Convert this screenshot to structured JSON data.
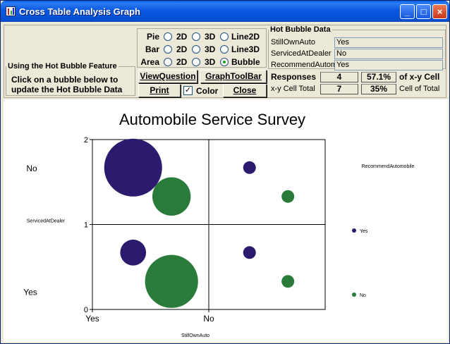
{
  "window": {
    "title": "Cross Table Analysis Graph",
    "minimize": "_",
    "maximize": "□",
    "close": "×"
  },
  "hint": {
    "legend": "Using the Hot Bubble Feature",
    "line1": "Click on a bubble below to",
    "line2": "update the Hot Bubble Data"
  },
  "graph_type": {
    "rows": [
      {
        "label": "Pie",
        "opt1": "2D",
        "opt2": "3D",
        "opt3": "Line2D",
        "selected": 0
      },
      {
        "label": "Bar",
        "opt1": "2D",
        "opt2": "3D",
        "opt3": "Line3D",
        "selected": 0
      },
      {
        "label": "Area",
        "opt1": "2D",
        "opt2": "3D",
        "opt3": "Bubble",
        "selected": 3
      }
    ]
  },
  "buttons": {
    "view_question": "ViewQuestion",
    "graph_toolbar": "GraphToolBar",
    "print": "Print",
    "color": "Color",
    "close": "Close",
    "color_checked": "✓"
  },
  "hot_bubble": {
    "legend": "Hot Bubble Data",
    "fields": [
      {
        "label": "StillOwnAuto",
        "value": "Yes"
      },
      {
        "label": "ServicedAtDealer",
        "value": "No"
      },
      {
        "label": "RecommendAutom",
        "value": "Yes"
      }
    ],
    "responses_label": "Responses",
    "responses": "4",
    "pct_xy": "57.1%",
    "of_xy_label": "of x-y Cell",
    "xy_total_label": "x-y Cell Total",
    "xy_total": "7",
    "pct_cell": "35%",
    "cell_of_total_label": "Cell of Total"
  },
  "colors": {
    "navy": "#2b1a6e",
    "green": "#2a7a3a"
  },
  "chart_data": {
    "type": "bubble",
    "title": "Automobile Service Survey",
    "xlabel": "StillOwnAuto",
    "ylabel": "ServicedAtDealer",
    "x_ticks": [
      "Yes",
      "No"
    ],
    "y_ticks": [
      "0",
      "1",
      "2"
    ],
    "x_categories": [
      "Yes",
      "No"
    ],
    "y_categories": [
      "Yes",
      "No"
    ],
    "legend_title": "RecommendAutomobile",
    "series": [
      {
        "name": "Yes",
        "color": "#2b1a6e",
        "points": [
          {
            "x": 0.35,
            "y": 1.67,
            "size": 5
          },
          {
            "x": 0.35,
            "y": 0.67,
            "size": 1
          },
          {
            "x": 1.35,
            "y": 1.67,
            "size": 0.2
          },
          {
            "x": 1.35,
            "y": 0.67,
            "size": 0.2
          }
        ]
      },
      {
        "name": "No",
        "color": "#2a7a3a",
        "points": [
          {
            "x": 0.68,
            "y": 1.33,
            "size": 2.2
          },
          {
            "x": 0.68,
            "y": 0.33,
            "size": 4.2
          },
          {
            "x": 1.68,
            "y": 1.33,
            "size": 0.2
          },
          {
            "x": 1.68,
            "y": 0.33,
            "size": 0.2
          }
        ]
      }
    ],
    "xlim": [
      0,
      2
    ],
    "ylim": [
      0,
      2
    ]
  }
}
